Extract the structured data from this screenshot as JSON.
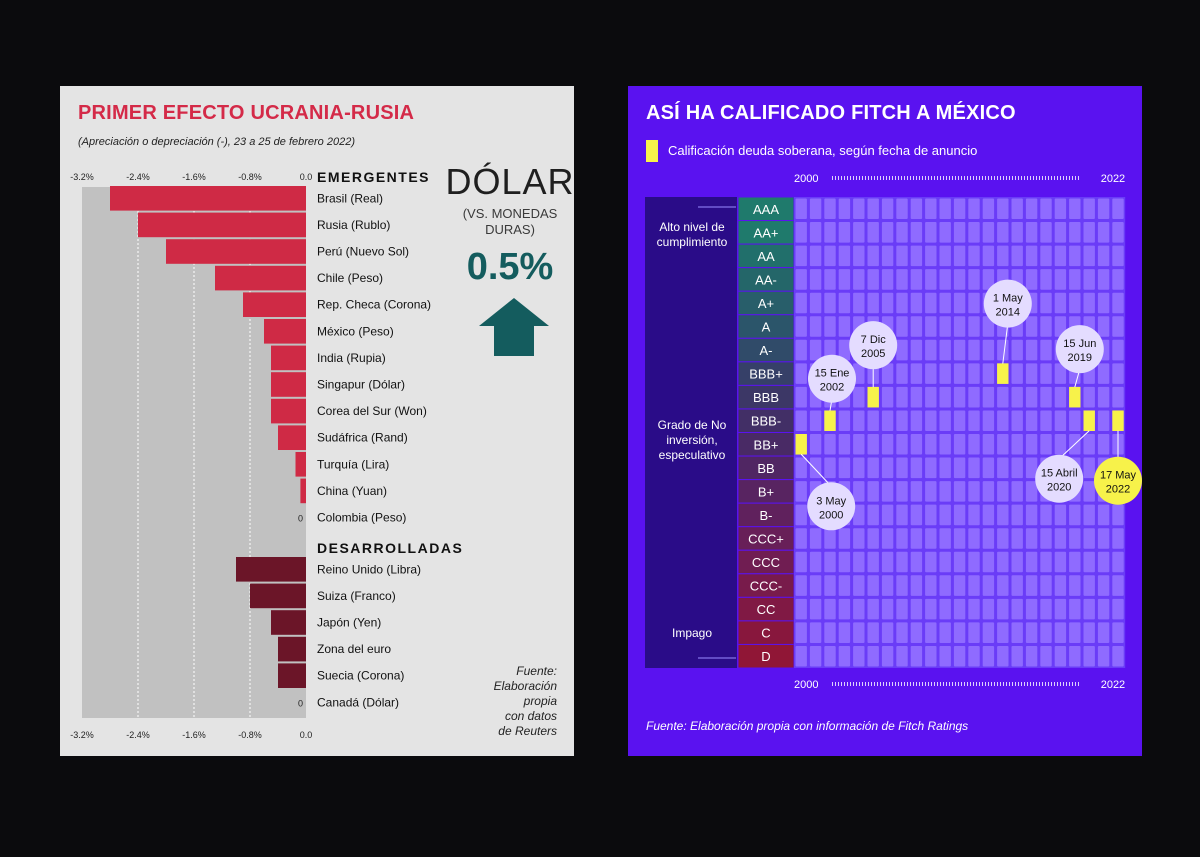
{
  "left": {
    "title": "PRIMER EFECTO UCRANIA-RUSIA",
    "subtitle": "(Apreciación o depreciación (-), 23 a 25 de febrero 2022)",
    "dollar": {
      "label": "DÓLAR",
      "sub1": "(VS. MONEDAS",
      "sub2": "DURAS)",
      "value": "0.5%",
      "direction": "up",
      "arrow_color": "#145c5e"
    },
    "source_lines": [
      "Fuente:",
      "Elaboración",
      "propia",
      "con datos",
      "de Reuters"
    ]
  },
  "right": {
    "title": "ASÍ HA CALIFICADO FITCH A MÉXICO",
    "legend": "Calificación deuda soberana, según fecha de anuncio",
    "source": "Fuente: Elaboración propia con información de Fitch Ratings",
    "group_labels": {
      "high": [
        "Alto nivel de",
        "cumplimiento"
      ],
      "spec": [
        "Grado de No",
        "inversión,",
        "especulativo"
      ],
      "default": [
        "Impago"
      ]
    }
  },
  "chart_data": [
    {
      "type": "bar",
      "orientation": "horizontal",
      "unit": "%",
      "xlim": [
        -3.2,
        0.0
      ],
      "ticks": [
        "-3.2%",
        "-2.4%",
        "-1.6%",
        "-0.8%",
        "0.0"
      ],
      "colors": {
        "emergentes": "#cf2a45",
        "desarrolladas": "#6b1528"
      },
      "groups": [
        {
          "name": "EMERGENTES",
          "categories": [
            "Brasil (Real)",
            "Rusia (Rublo)",
            "Perú (Nuevo Sol)",
            "Chile (Peso)",
            "Rep. Checa (Corona)",
            "México (Peso)",
            "India (Rupia)",
            "Singapur (Dólar)",
            "Corea del Sur (Won)",
            "Sudáfrica (Rand)",
            "Turquía (Lira)",
            "China (Yuan)",
            "Colombia (Peso)"
          ],
          "values": [
            -2.8,
            -2.4,
            -2.0,
            -1.3,
            -0.9,
            -0.6,
            -0.5,
            -0.5,
            -0.5,
            -0.4,
            -0.15,
            -0.08,
            0
          ],
          "value_labels": [
            "",
            "",
            "",
            "",
            "",
            "",
            "",
            "",
            "",
            "",
            "",
            "",
            "0"
          ]
        },
        {
          "name": "DESARROLLADAS",
          "categories": [
            "Reino Unido (Libra)",
            "Suiza (Franco)",
            "Japón (Yen)",
            "Zona del euro",
            "Suecia (Corona)",
            "Canadá (Dólar)"
          ],
          "values": [
            -1.0,
            -0.8,
            -0.5,
            -0.4,
            -0.4,
            0
          ],
          "value_labels": [
            "",
            "",
            "",
            "",
            "",
            "0"
          ]
        }
      ]
    },
    {
      "type": "heatmap",
      "x_start": "2000",
      "x_end": "2022",
      "years": [
        2000,
        2001,
        2002,
        2003,
        2004,
        2005,
        2006,
        2007,
        2008,
        2009,
        2010,
        2011,
        2012,
        2013,
        2014,
        2015,
        2016,
        2017,
        2018,
        2019,
        2020,
        2021,
        2022
      ],
      "ratings": [
        "AAA",
        "AA+",
        "AA",
        "AA-",
        "A+",
        "A",
        "A-",
        "BBB+",
        "BBB",
        "BBB-",
        "BB+",
        "BB",
        "B+",
        "B-",
        "CCC+",
        "CCC",
        "CCC-",
        "CC",
        "C",
        "D"
      ],
      "rating_colors": [
        "#1f7a6c",
        "#1f7a6c",
        "#216f6b",
        "#246669",
        "#285e6a",
        "#2b556a",
        "#304b69",
        "#364068",
        "#3c3766",
        "#422f66",
        "#492a65",
        "#502663",
        "#582461",
        "#60215d",
        "#681f58",
        "#701d52",
        "#781b4b",
        "#801944",
        "#88173d",
        "#901636"
      ],
      "events": [
        {
          "label_1": "3 May",
          "label_2": "2000",
          "year": 2000,
          "rating": "BB+"
        },
        {
          "label_1": "15 Ene",
          "label_2": "2002",
          "year": 2002,
          "rating": "BBB-"
        },
        {
          "label_1": "7 Dic",
          "label_2": "2005",
          "year": 2005,
          "rating": "BBB"
        },
        {
          "label_1": "1 May",
          "label_2": "2014",
          "year": 2014,
          "rating": "BBB+"
        },
        {
          "label_1": "15 Jun",
          "label_2": "2019",
          "year": 2019,
          "rating": "BBB"
        },
        {
          "label_1": "15 Abril",
          "label_2": "2020",
          "year": 2020,
          "rating": "BBB-"
        },
        {
          "label_1": "17 May",
          "label_2": "2022",
          "year": 2022,
          "rating": "BBB-",
          "highlight": true
        }
      ],
      "event_color": "#f7f24a"
    }
  ]
}
